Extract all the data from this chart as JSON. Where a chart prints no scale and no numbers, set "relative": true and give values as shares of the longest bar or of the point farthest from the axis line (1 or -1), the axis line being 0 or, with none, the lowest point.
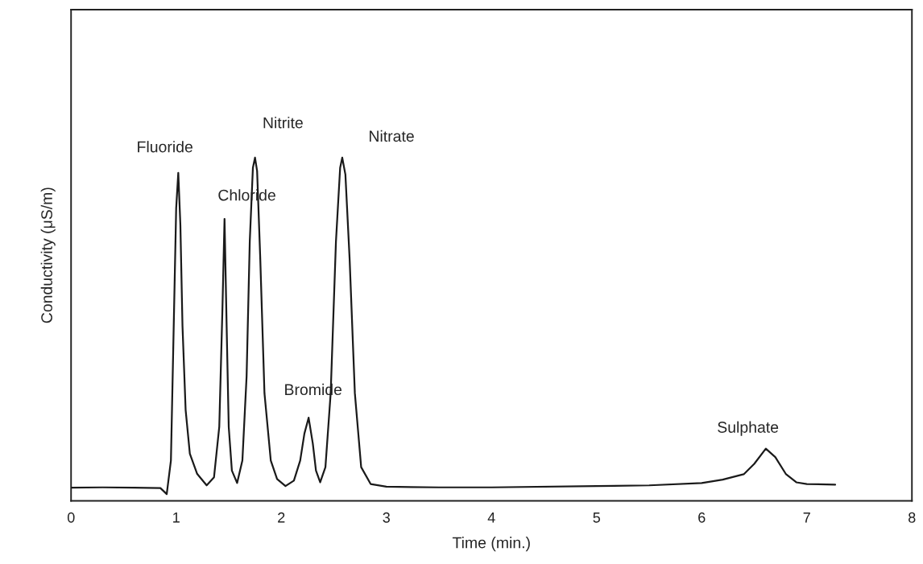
{
  "chart_data": {
    "type": "line",
    "relative": true,
    "xlabel": "Time (min.)",
    "ylabel": "Conductivity (μS/m)",
    "xlim": [
      0,
      8
    ],
    "xticks": [
      0,
      1,
      2,
      3,
      4,
      5,
      6,
      7,
      8
    ],
    "grid": false,
    "marker": "none",
    "line_style": "solid",
    "series": [
      {
        "color": "#1a1a1a",
        "x": [
          0,
          0.3,
          0.6,
          0.85,
          0.91,
          0.95,
          0.98,
          1.0,
          1.02,
          1.04,
          1.06,
          1.09,
          1.13,
          1.2,
          1.29,
          1.36,
          1.41,
          1.44,
          1.46,
          1.48,
          1.5,
          1.53,
          1.58,
          1.63,
          1.67,
          1.7,
          1.73,
          1.75,
          1.77,
          1.8,
          1.84,
          1.9,
          1.96,
          2.04,
          2.12,
          2.18,
          2.22,
          2.26,
          2.3,
          2.33,
          2.37,
          2.42,
          2.47,
          2.52,
          2.56,
          2.58,
          2.61,
          2.65,
          2.7,
          2.76,
          2.85,
          3.0,
          3.5,
          4.0,
          5.0,
          5.5,
          6.0,
          6.2,
          6.4,
          6.5,
          6.61,
          6.7,
          6.8,
          6.9,
          7.0,
          7.27
        ],
        "values": [
          0.019,
          0.02,
          0.019,
          0.018,
          0.0,
          0.1,
          0.55,
          0.85,
          0.955,
          0.8,
          0.5,
          0.25,
          0.12,
          0.06,
          0.026,
          0.05,
          0.2,
          0.55,
          0.818,
          0.5,
          0.2,
          0.07,
          0.033,
          0.1,
          0.35,
          0.75,
          0.97,
          1.0,
          0.96,
          0.7,
          0.3,
          0.1,
          0.045,
          0.024,
          0.04,
          0.1,
          0.18,
          0.227,
          0.15,
          0.07,
          0.035,
          0.08,
          0.3,
          0.75,
          0.97,
          1.0,
          0.95,
          0.7,
          0.3,
          0.08,
          0.03,
          0.022,
          0.02,
          0.02,
          0.024,
          0.026,
          0.033,
          0.043,
          0.059,
          0.09,
          0.135,
          0.11,
          0.06,
          0.035,
          0.03,
          0.028
        ]
      }
    ],
    "annotations": [
      {
        "text": "Fluoride",
        "x": 1.02,
        "y": 0.955
      },
      {
        "text": "Chloride",
        "x": 1.46,
        "y": 0.818
      },
      {
        "text": "Nitrite",
        "x": 1.75,
        "y": 1.0
      },
      {
        "text": "Bromide",
        "x": 2.26,
        "y": 0.227
      },
      {
        "text": "Nitrate",
        "x": 2.58,
        "y": 1.0
      },
      {
        "text": "Sulphate",
        "x": 6.61,
        "y": 0.135
      }
    ]
  }
}
